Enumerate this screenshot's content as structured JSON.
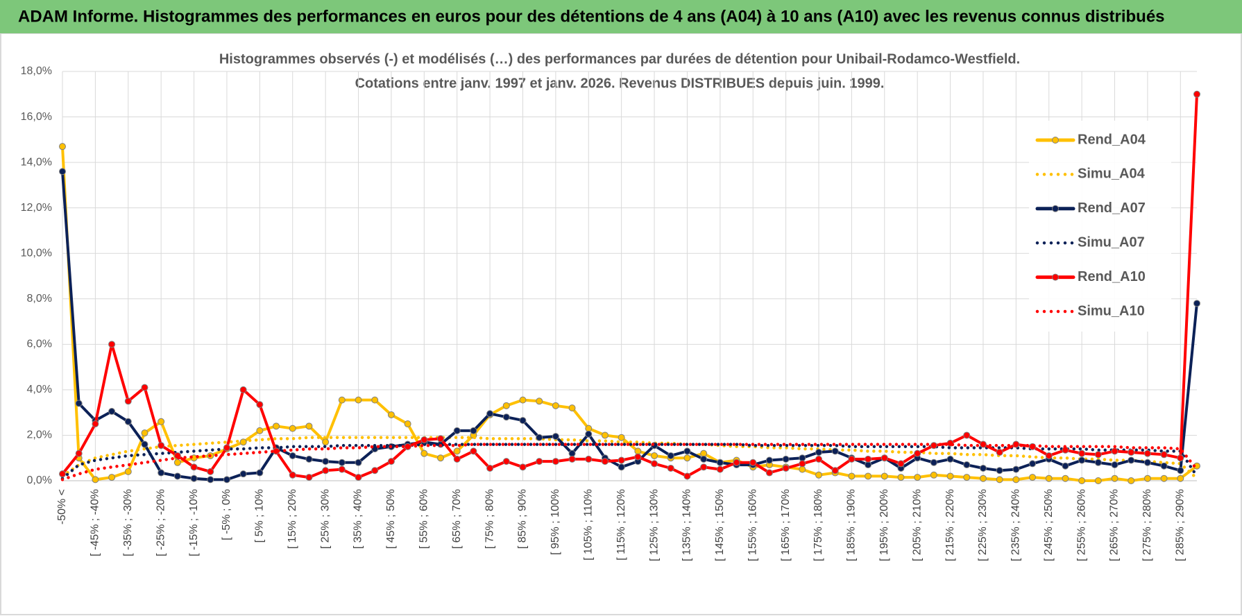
{
  "header": {
    "title": "ADAM Informe. Histogrammes des performances en euros pour des détentions de 4 ans (A04) à 10 ans (A10) avec les revenus connus distribués"
  },
  "chart_data": {
    "type": "line",
    "title": [
      "Histogrammes observés (-) et modélisés (…) des performances par durées de détention pour Unibail-Rodamco-Westfield.",
      "Cotations entre janv. 1997 et janv. 2026. Revenus DISTRIBUES depuis juin. 1999."
    ],
    "categories": [
      "-50% <",
      null,
      "[ -45% ; -40%",
      null,
      "[ -35% ; -30%",
      null,
      "[ -25% ; -20%",
      null,
      "[ -15% ; -10%",
      null,
      "[ -5% ; 0%",
      null,
      "[ 5% ; 10%",
      null,
      "[ 15% ; 20%",
      null,
      "[ 25% ; 30%",
      null,
      "[ 35% ; 40%",
      null,
      "[ 45% ; 50%",
      null,
      "[ 55% ; 60%",
      null,
      "[ 65% ; 70%",
      null,
      "[ 75% ; 80%",
      null,
      "[ 85% ; 90%",
      null,
      "[ 95% ; 100%",
      null,
      "[ 105% ; 110%",
      null,
      "[ 115% ; 120%",
      null,
      "[ 125% ; 130%",
      null,
      "[ 135% ; 140%",
      null,
      "[ 145% ; 150%",
      null,
      "[ 155% ; 160%",
      null,
      "[ 165% ; 170%",
      null,
      "[ 175% ; 180%",
      null,
      "[ 185% ; 190%",
      null,
      "[ 195% ; 200%",
      null,
      "[ 205% ; 210%",
      null,
      "[ 215% ; 220%",
      null,
      "[ 225% ; 230%",
      null,
      "[ 235% ; 240%",
      null,
      "[ 245% ; 250%",
      null,
      "[ 255% ; 260%",
      null,
      "[ 265% ; 270%",
      null,
      "[ 275% ; 280%",
      null,
      "[ 285% ; 290%",
      null
    ],
    "ylim": [
      0,
      18
    ],
    "yticks": [
      {
        "value": 0,
        "label": "0,0%"
      },
      {
        "value": 2,
        "label": "2,0%"
      },
      {
        "value": 4,
        "label": "4,0%"
      },
      {
        "value": 6,
        "label": "6,0%"
      },
      {
        "value": 8,
        "label": "8,0%"
      },
      {
        "value": 10,
        "label": "10,0%"
      },
      {
        "value": 12,
        "label": "12,0%"
      },
      {
        "value": 14,
        "label": "14,0%"
      },
      {
        "value": 16,
        "label": "16,0%"
      },
      {
        "value": 18,
        "label": "18,0%"
      }
    ],
    "grid": true,
    "legend": "upper right",
    "series": [
      {
        "name": "Rend_A04",
        "color": "#ffc000",
        "line_style": "solid",
        "markers": true,
        "values": [
          14.7,
          1.0,
          0.05,
          0.15,
          0.4,
          2.1,
          2.6,
          0.8,
          1.0,
          1.1,
          1.4,
          1.7,
          2.2,
          2.4,
          2.3,
          2.4,
          1.7,
          3.55,
          3.55,
          3.55,
          2.9,
          2.5,
          1.2,
          1.0,
          1.3,
          2.0,
          2.9,
          3.3,
          3.55,
          3.5,
          3.3,
          3.2,
          2.3,
          2.0,
          1.9,
          1.3,
          1.1,
          1.0,
          1.0,
          1.2,
          0.8,
          0.9,
          0.6,
          0.7,
          0.6,
          0.5,
          0.25,
          0.35,
          0.2,
          0.2,
          0.2,
          0.15,
          0.15,
          0.25,
          0.2,
          0.15,
          0.1,
          0.05,
          0.05,
          0.15,
          0.1,
          0.1,
          0.0,
          0.0,
          0.1,
          0.0,
          0.1,
          0.1,
          0.1,
          0.65
        ]
      },
      {
        "name": "Simu_A04",
        "color": "#ffc000",
        "line_style": "dotted",
        "markers": false,
        "values": [
          0.2,
          0.7,
          1.0,
          1.15,
          1.3,
          1.4,
          1.5,
          1.55,
          1.6,
          1.65,
          1.7,
          1.75,
          1.8,
          1.85,
          1.85,
          1.9,
          1.9,
          1.9,
          1.9,
          1.9,
          1.9,
          1.9,
          1.9,
          1.9,
          1.9,
          1.9,
          1.85,
          1.85,
          1.85,
          1.85,
          1.8,
          1.8,
          1.75,
          1.75,
          1.7,
          1.7,
          1.65,
          1.65,
          1.6,
          1.6,
          1.55,
          1.5,
          1.5,
          1.45,
          1.45,
          1.4,
          1.4,
          1.35,
          1.35,
          1.3,
          1.3,
          1.25,
          1.25,
          1.2,
          1.2,
          1.15,
          1.15,
          1.1,
          1.1,
          1.05,
          1.0,
          1.0,
          0.95,
          0.95,
          0.9,
          0.9,
          0.85,
          0.8,
          0.75,
          0.1
        ]
      },
      {
        "name": "Rend_A07",
        "color": "#0c2157",
        "line_style": "solid",
        "markers": true,
        "values": [
          13.6,
          3.4,
          2.65,
          3.05,
          2.6,
          1.6,
          0.35,
          0.2,
          0.1,
          0.05,
          0.05,
          0.3,
          0.35,
          1.45,
          1.1,
          0.95,
          0.85,
          0.8,
          0.8,
          1.4,
          1.5,
          1.6,
          1.7,
          1.6,
          2.2,
          2.2,
          2.95,
          2.8,
          2.65,
          1.9,
          1.95,
          1.2,
          2.05,
          1.0,
          0.6,
          0.85,
          1.55,
          1.1,
          1.3,
          0.95,
          0.8,
          0.7,
          0.7,
          0.9,
          0.95,
          1.0,
          1.25,
          1.3,
          1.0,
          0.7,
          1.0,
          0.55,
          1.0,
          0.8,
          0.95,
          0.7,
          0.55,
          0.45,
          0.5,
          0.75,
          0.95,
          0.65,
          0.9,
          0.8,
          0.7,
          0.9,
          0.8,
          0.65,
          0.45,
          7.8
        ]
      },
      {
        "name": "Simu_A07",
        "color": "#0c2157",
        "line_style": "dotted",
        "markers": false,
        "values": [
          0.1,
          0.7,
          0.9,
          1.0,
          1.1,
          1.15,
          1.2,
          1.25,
          1.3,
          1.35,
          1.4,
          1.4,
          1.45,
          1.45,
          1.5,
          1.5,
          1.5,
          1.55,
          1.55,
          1.55,
          1.55,
          1.55,
          1.6,
          1.6,
          1.6,
          1.6,
          1.6,
          1.6,
          1.6,
          1.6,
          1.6,
          1.6,
          1.6,
          1.6,
          1.6,
          1.6,
          1.6,
          1.6,
          1.6,
          1.6,
          1.6,
          1.6,
          1.55,
          1.55,
          1.55,
          1.55,
          1.55,
          1.55,
          1.5,
          1.5,
          1.5,
          1.5,
          1.5,
          1.5,
          1.45,
          1.45,
          1.45,
          1.45,
          1.45,
          1.4,
          1.4,
          1.4,
          1.4,
          1.35,
          1.35,
          1.35,
          1.35,
          1.3,
          1.3,
          0.2
        ]
      },
      {
        "name": "Rend_A10",
        "color": "#ff0000",
        "line_style": "solid",
        "markers": true,
        "values": [
          0.3,
          1.2,
          2.5,
          6.0,
          3.5,
          4.1,
          1.55,
          1.1,
          0.6,
          0.4,
          1.45,
          4.0,
          3.35,
          1.3,
          0.25,
          0.15,
          0.45,
          0.5,
          0.15,
          0.45,
          0.85,
          1.5,
          1.8,
          1.85,
          0.95,
          1.3,
          0.55,
          0.85,
          0.6,
          0.85,
          0.85,
          0.95,
          0.95,
          0.85,
          0.9,
          1.05,
          0.75,
          0.55,
          0.2,
          0.6,
          0.5,
          0.8,
          0.8,
          0.35,
          0.55,
          0.75,
          0.95,
          0.45,
          0.95,
          0.95,
          1.0,
          0.75,
          1.2,
          1.55,
          1.65,
          2.0,
          1.6,
          1.25,
          1.6,
          1.5,
          1.1,
          1.35,
          1.2,
          1.15,
          1.3,
          1.25,
          1.2,
          1.15,
          1.0,
          17.0
        ]
      },
      {
        "name": "Simu_A10",
        "color": "#ff0000",
        "line_style": "dotted",
        "markers": false,
        "values": [
          0.05,
          0.3,
          0.5,
          0.6,
          0.7,
          0.8,
          0.9,
          1.0,
          1.05,
          1.1,
          1.15,
          1.2,
          1.25,
          1.3,
          1.35,
          1.4,
          1.4,
          1.45,
          1.45,
          1.5,
          1.5,
          1.5,
          1.55,
          1.55,
          1.55,
          1.6,
          1.6,
          1.6,
          1.6,
          1.6,
          1.6,
          1.6,
          1.6,
          1.6,
          1.6,
          1.6,
          1.6,
          1.6,
          1.6,
          1.6,
          1.6,
          1.6,
          1.6,
          1.6,
          1.6,
          1.6,
          1.6,
          1.6,
          1.6,
          1.6,
          1.6,
          1.6,
          1.6,
          1.6,
          1.6,
          1.55,
          1.55,
          1.55,
          1.55,
          1.55,
          1.5,
          1.5,
          1.5,
          1.5,
          1.5,
          1.45,
          1.45,
          1.45,
          1.4,
          0.5
        ]
      }
    ]
  }
}
